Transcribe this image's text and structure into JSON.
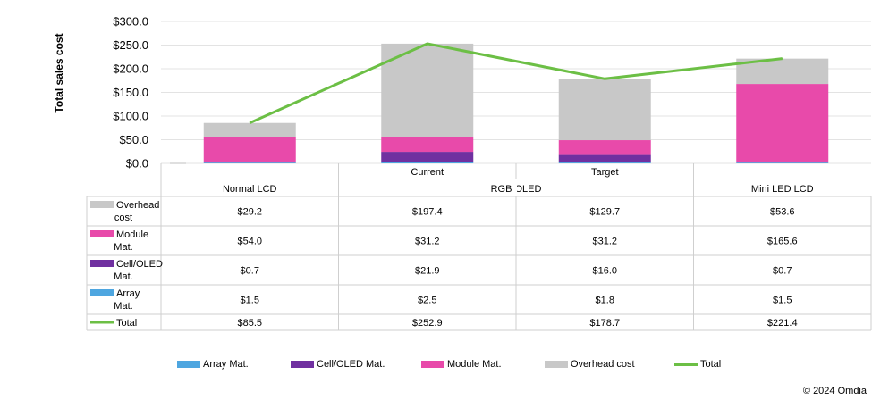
{
  "chart_data": {
    "type": "bar",
    "stacked": true,
    "ylabel": "Total sales cost",
    "ylim": [
      0,
      300
    ],
    "yticks": [
      "$300.0",
      "$250.0",
      "$200.0",
      "$150.0",
      "$100.0",
      "$50.0",
      "$0.0"
    ],
    "tick_values": [
      300,
      250,
      200,
      150,
      100,
      50,
      0
    ],
    "grid": true,
    "legend_position": "bottom",
    "categories": [
      "Normal LCD",
      "Current",
      "Target",
      "Mini LED LCD"
    ],
    "group_labels": [
      "Normal LCD",
      "RGB OLED",
      "Mini LED LCD"
    ],
    "series": [
      {
        "name": "Overhead cost",
        "label": "Overhead cost",
        "color": "#c8c8c8",
        "values": [
          29.2,
          197.4,
          129.7,
          53.6
        ],
        "cells": [
          "$29.2",
          "$197.4",
          "$129.7",
          "$53.6"
        ]
      },
      {
        "name": "Module Mat.",
        "label": "Module Mat.",
        "color": "#e84aaa",
        "values": [
          54.0,
          31.2,
          31.2,
          165.6
        ],
        "cells": [
          "$54.0",
          "$31.2",
          "$31.2",
          "$165.6"
        ]
      },
      {
        "name": "Cell/OLED Mat.",
        "label": "Cell/OLED Mat.",
        "color": "#7030a0",
        "values": [
          0.7,
          21.9,
          16.0,
          0.7
        ],
        "cells": [
          "$0.7",
          "$21.9",
          "$16.0",
          "$0.7"
        ]
      },
      {
        "name": "Array Mat.",
        "label": "Array Mat.",
        "color": "#4ea6e0",
        "values": [
          1.5,
          2.5,
          1.8,
          1.5
        ],
        "cells": [
          "$1.5",
          "$2.5",
          "$1.8",
          "$1.5"
        ]
      }
    ],
    "total": {
      "name": "Total",
      "color": "#6cbf45",
      "values": [
        85.5,
        252.9,
        178.7,
        221.4
      ],
      "cells": [
        "$85.5",
        "$252.9",
        "$178.7",
        "$221.4"
      ]
    },
    "stack_order": [
      "Array Mat.",
      "Cell/OLED Mat.",
      "Module Mat.",
      "Overhead cost"
    ],
    "legend": [
      "Array Mat.",
      "Cell/OLED Mat.",
      "Module Mat.",
      "Overhead cost",
      "Total"
    ]
  },
  "credit": "© 2024 Omdia"
}
